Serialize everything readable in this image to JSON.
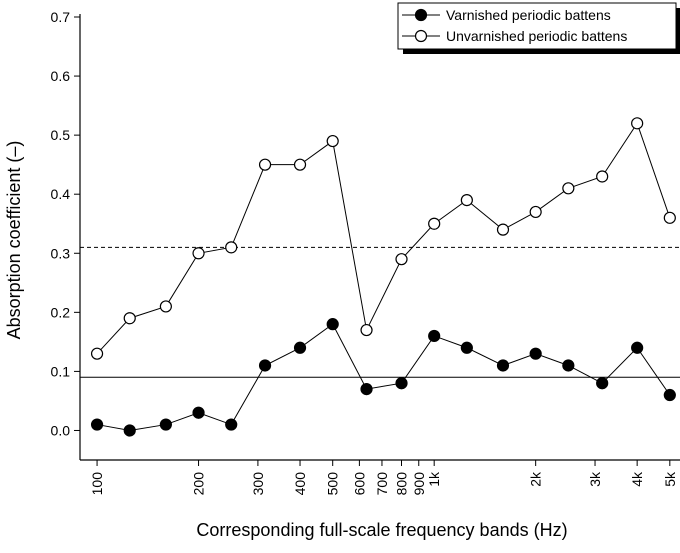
{
  "chart_data": {
    "type": "line",
    "x_label": "Corresponding full-scale frequency bands (Hz)",
    "y_label": "Absorption coefficient (–)",
    "x": [
      100,
      125,
      160,
      200,
      250,
      315,
      400,
      500,
      630,
      800,
      1000,
      1250,
      1600,
      2000,
      2500,
      3150,
      4000,
      5000
    ],
    "series": [
      {
        "name": "Varnished periodic battens",
        "color": "#000000",
        "marker": "filled",
        "values": [
          0.01,
          0.0,
          0.01,
          0.03,
          0.01,
          0.11,
          0.14,
          0.18,
          0.07,
          0.08,
          0.16,
          0.14,
          0.11,
          0.13,
          0.11,
          0.08,
          0.14,
          0.06
        ]
      },
      {
        "name": "Unvarnished periodic battens",
        "color": "#000000",
        "marker": "open",
        "values": [
          0.13,
          0.19,
          0.21,
          0.3,
          0.31,
          0.45,
          0.45,
          0.49,
          0.17,
          0.29,
          0.35,
          0.39,
          0.34,
          0.37,
          0.41,
          0.43,
          0.52,
          0.36
        ]
      }
    ],
    "reference_lines": [
      {
        "value": 0.31,
        "dashed": true
      },
      {
        "value": 0.09,
        "dashed": false
      }
    ],
    "x_log": true,
    "xlim": [
      89,
      5360
    ],
    "xticks": [
      100,
      200,
      300,
      400,
      500,
      600,
      700,
      800,
      900,
      {
        "value": 1000,
        "label": "1k"
      },
      {
        "value": 2000,
        "label": "2k"
      },
      {
        "value": 3000,
        "label": "3k"
      },
      {
        "value": 4000,
        "label": "4k"
      },
      {
        "value": 5000,
        "label": "5k"
      }
    ],
    "ylim": [
      -0.05,
      0.7
    ],
    "yticks": [
      {
        "value": 0,
        "label": "0.0"
      },
      0.1,
      0.2,
      0.3,
      0.4,
      0.5,
      0.6,
      0.7
    ],
    "legend": "top-right"
  }
}
